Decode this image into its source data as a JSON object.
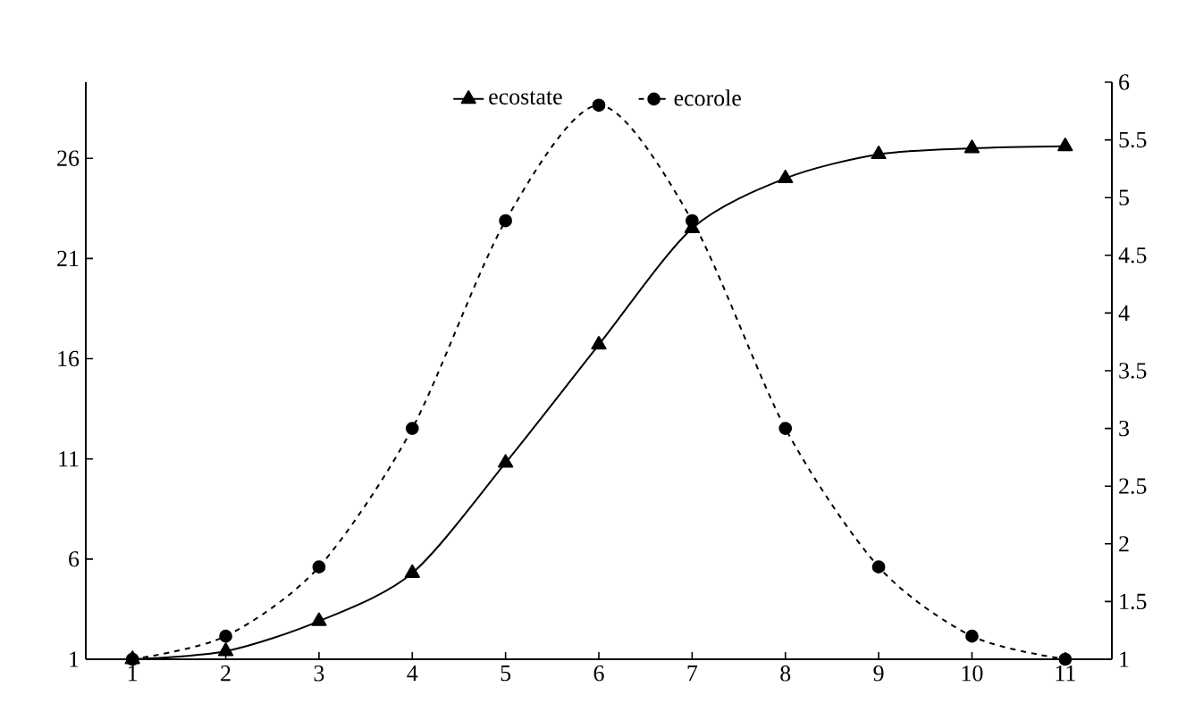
{
  "chart_data": {
    "type": "line",
    "categories": [
      "1",
      "2",
      "3",
      "4",
      "5",
      "6",
      "7",
      "8",
      "9",
      "10",
      "11"
    ],
    "series": [
      {
        "name": "ecostate",
        "color": "#000000",
        "marker": "triangle",
        "line_style": "solid",
        "values": [
          1,
          1.4,
          2.9,
          5.3,
          10.8,
          16.7,
          22.5,
          25.0,
          26.2,
          26.5,
          26.6
        ]
      },
      {
        "name": "ecorole",
        "color": "#000000",
        "marker": "circle",
        "line_style": "dashed",
        "axis": "y2",
        "values": [
          1,
          1.2,
          1.8,
          3.0,
          4.8,
          5.8,
          4.8,
          3.0,
          1.8,
          1.2,
          1
        ]
      }
    ],
    "ylim": [
      1,
      29.8
    ],
    "yticks": [
      1,
      6,
      11,
      16,
      21,
      26
    ],
    "y2lim": [
      1,
      6
    ],
    "y2ticks": [
      1,
      1.5,
      2,
      2.5,
      3,
      3.5,
      4,
      4.5,
      5,
      5.5,
      6
    ],
    "grid": false,
    "legend": "top"
  }
}
